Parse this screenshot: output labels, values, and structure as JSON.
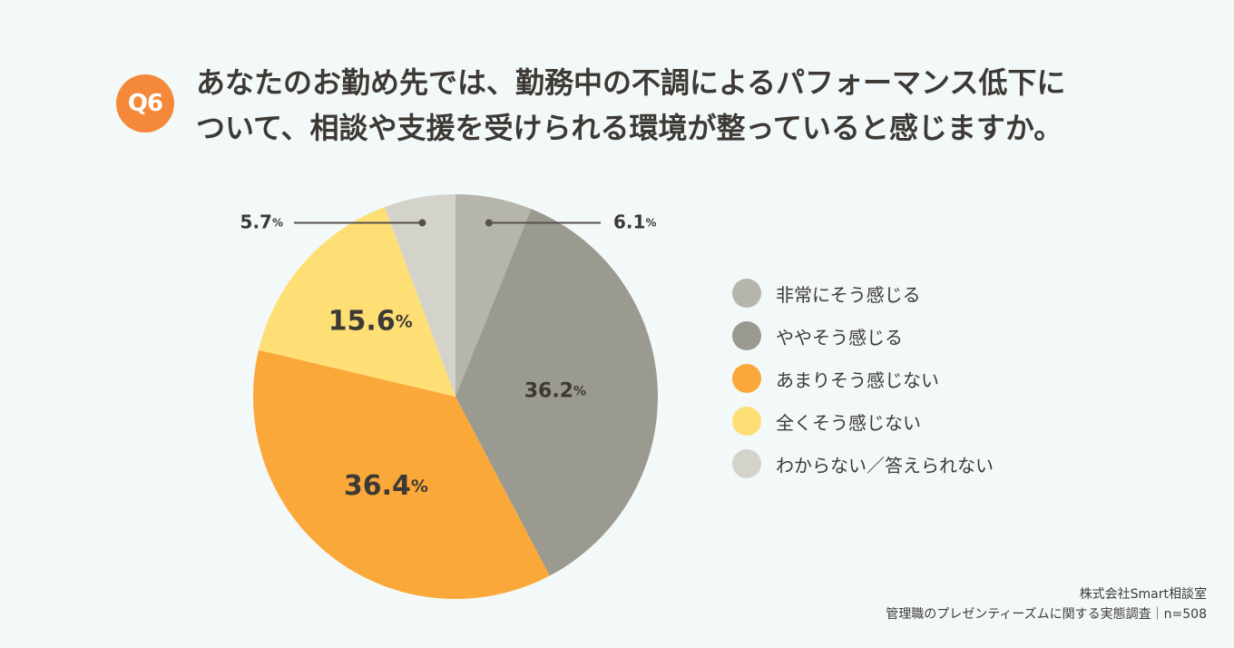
{
  "badge": "Q6",
  "title_lines": [
    "あなたのお勤め先では、勤務中の不調によるパフォーマンス低下に",
    "ついて、相談や支援を受けられる環境が整っていると感じますか。"
  ],
  "source": {
    "line1": "株式会社Smart相談室",
    "line2": "管理職のプレゼンティーズムに関する実態調査｜n=508"
  },
  "chart_data": {
    "type": "pie",
    "start_angle_deg": 0,
    "direction": "clockwise",
    "percent_suffix": "%",
    "slices": [
      {
        "label": "非常にそう感じる",
        "value": 6.1,
        "display": "6.1",
        "color": "#b6b5ac"
      },
      {
        "label": "ややそう感じる",
        "value": 36.2,
        "display": "36.2",
        "color": "#9b9a90"
      },
      {
        "label": "あまりそう感じない",
        "value": 36.4,
        "display": "36.4",
        "color": "#fba83a"
      },
      {
        "label": "全くそう感じない",
        "value": 15.6,
        "display": "15.6",
        "color": "#fedf75"
      },
      {
        "label": "わからない／答えられない",
        "value": 5.7,
        "display": "5.7",
        "color": "#d4d3cb"
      }
    ]
  },
  "colors": {
    "background": "#f3f9f8",
    "badge": "#f5893a",
    "text": "#3d3a35",
    "leader_line": "#55524c"
  }
}
